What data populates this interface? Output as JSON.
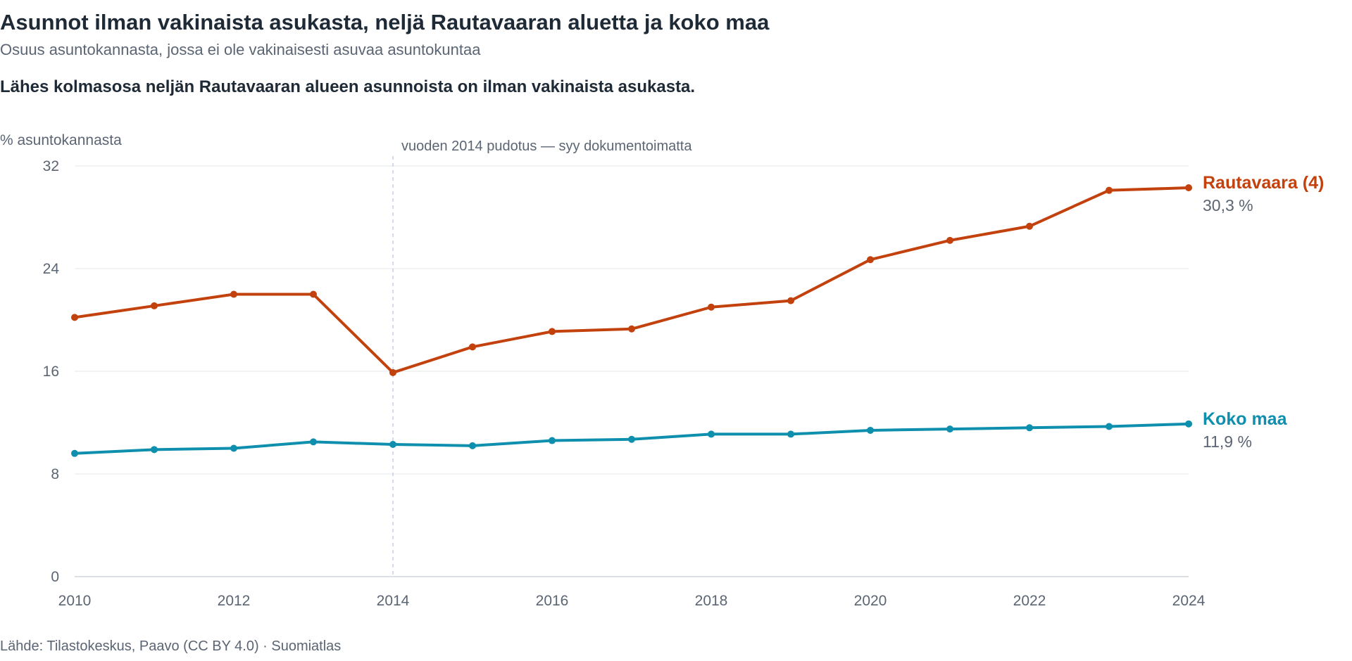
{
  "header": {
    "title": "Asunnot ilman vakinaista asukasta, neljä Rautavaaran aluetta ja koko maa",
    "subtitle": "Osuus asuntokannasta, jossa ei ole vakinaisesti asuvaa asuntokuntaa",
    "insight": "Lähes kolmasosa neljän Rautavaaran alueen asunnoista on ilman vakinaista asukasta."
  },
  "footer": {
    "source": "Lähde: Tilastokeskus, Paavo (CC BY 4.0) · Suomiatlas"
  },
  "chart_data": {
    "type": "line",
    "title": "Asunnot ilman vakinaista asukasta, neljä Rautavaaran aluetta ja koko maa",
    "subtitle": "Osuus asuntokannasta, jossa ei ole vakinaisesti asuvaa asuntokuntaa",
    "ylabel": "% asuntokannasta",
    "xlabel": "",
    "x": [
      2010,
      2011,
      2012,
      2013,
      2014,
      2015,
      2016,
      2017,
      2018,
      2019,
      2020,
      2021,
      2022,
      2023,
      2024
    ],
    "xlim": [
      2010,
      2024
    ],
    "ylim": [
      0,
      32
    ],
    "x_ticks": [
      "2010",
      "2012",
      "2014",
      "2016",
      "2018",
      "2020",
      "2022",
      "2024"
    ],
    "y_ticks": [
      "0",
      "8",
      "16",
      "24",
      "32"
    ],
    "grid": true,
    "legend": "end-of-line labels",
    "annotation": {
      "x": 2014,
      "text": "vuoden 2014 pudotus — syy dokumentoimatta"
    },
    "series": [
      {
        "name": "Rautavaara (4)",
        "color": "#c2410c",
        "end_label": "30,3 %",
        "values": [
          20.2,
          21.1,
          22.0,
          22.0,
          15.9,
          17.9,
          19.1,
          19.3,
          21.0,
          21.5,
          24.7,
          26.2,
          27.3,
          30.1,
          30.3
        ]
      },
      {
        "name": "Koko maa",
        "color": "#0e8fad",
        "end_label": "11,9 %",
        "values": [
          9.6,
          9.9,
          10.0,
          10.5,
          10.3,
          10.2,
          10.6,
          10.7,
          11.1,
          11.1,
          11.4,
          11.5,
          11.6,
          11.7,
          11.9
        ]
      }
    ]
  }
}
